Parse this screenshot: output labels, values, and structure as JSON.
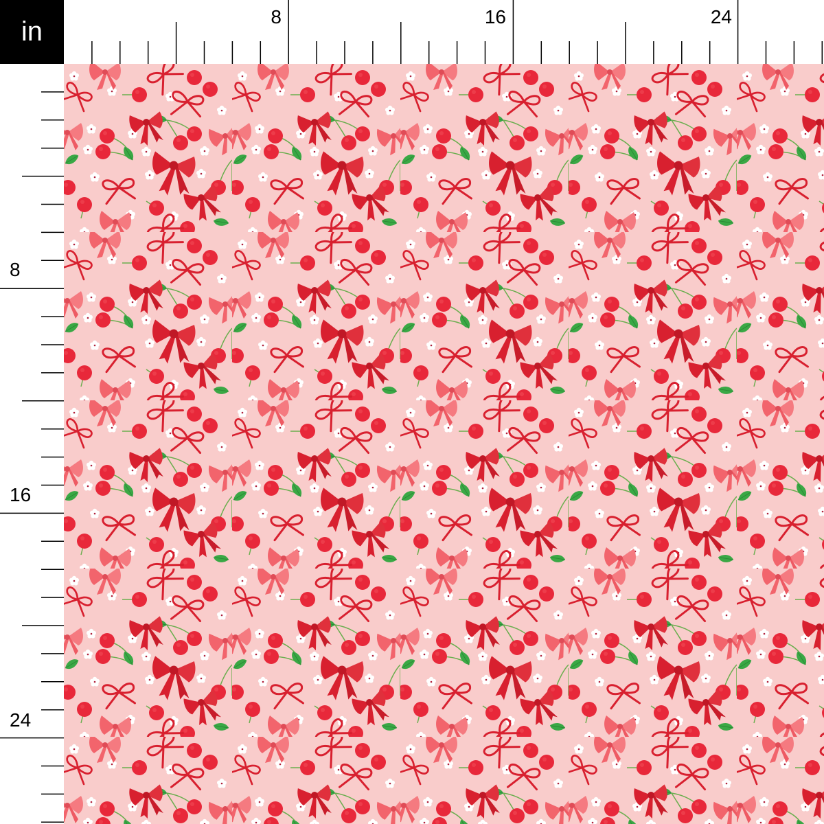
{
  "ruler": {
    "unit": "in",
    "top_labels": [
      "8",
      "16",
      "24"
    ],
    "left_labels": [
      "8",
      "16",
      "24"
    ],
    "pixels_per_inch_scale": "inch"
  },
  "fabric": {
    "colors": {
      "background": "#f9cccb",
      "cherry": "#e8283a",
      "bow_red": "#d8202f",
      "bow_pink": "#f2646c",
      "leaf": "#3aa845",
      "stem": "#6aae4e",
      "flower": "#ffffff",
      "flower_center": "#b0203a"
    },
    "motifs": [
      "cherry",
      "red-bow",
      "pink-bow",
      "ribbon-bow",
      "flower",
      "leaf"
    ]
  }
}
